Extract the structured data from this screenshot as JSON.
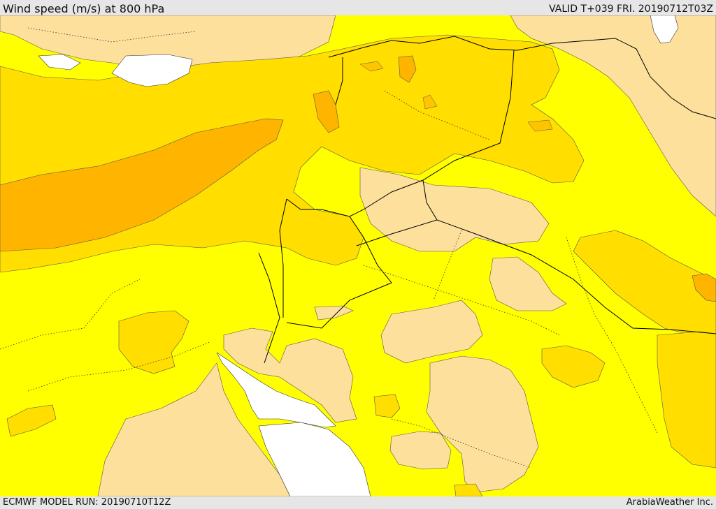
{
  "header": {
    "title": "Wind speed (m/s) at 800 hPa",
    "valid": "VALID T+039 FRI. 20190712T03Z"
  },
  "footer": {
    "model_run": "ECMWF MODEL RUN: 20190710T12Z",
    "credit": "ArabiaWeather Inc."
  },
  "map": {
    "variable": "wind speed",
    "level": "800 hPa",
    "colors": {
      "background_band": "#ffff00",
      "band_1": "#fde09c",
      "band_2": "#ffde00",
      "band_3": "#ffc400",
      "band_4": "#ffb400",
      "sea": "#ffffff",
      "contour": "#555555",
      "border": "#000000"
    }
  }
}
